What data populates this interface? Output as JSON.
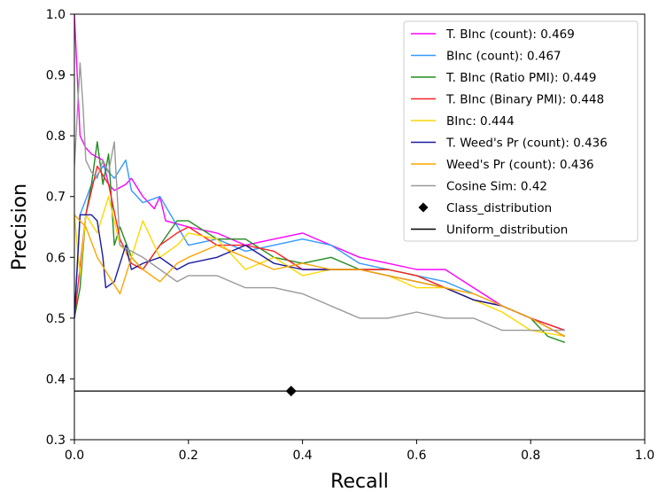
{
  "chart_data": {
    "type": "line",
    "title": "",
    "xlabel": "Recall",
    "ylabel": "Precision",
    "xlim": [
      0.0,
      1.0
    ],
    "ylim": [
      0.3,
      1.0
    ],
    "xticks": [
      "0.0",
      "0.2",
      "0.4",
      "0.6",
      "0.8",
      "1.0"
    ],
    "yticks": [
      "0.3",
      "0.4",
      "0.5",
      "0.6",
      "0.7",
      "0.8",
      "0.9",
      "1.0"
    ],
    "grid": false,
    "legend_position": "top-right",
    "series": [
      {
        "name": "T. BInc (count): 0.469",
        "color": "#ff00ff",
        "x": [
          0.0,
          0.005,
          0.01,
          0.02,
          0.03,
          0.05,
          0.06,
          0.07,
          0.09,
          0.1,
          0.12,
          0.14,
          0.15,
          0.16,
          0.2,
          0.25,
          0.3,
          0.35,
          0.4,
          0.45,
          0.5,
          0.55,
          0.6,
          0.65,
          0.7,
          0.75,
          0.8,
          0.86
        ],
        "y": [
          1.0,
          0.9,
          0.8,
          0.78,
          0.77,
          0.76,
          0.72,
          0.71,
          0.72,
          0.73,
          0.7,
          0.68,
          0.7,
          0.66,
          0.65,
          0.64,
          0.62,
          0.63,
          0.64,
          0.62,
          0.6,
          0.59,
          0.58,
          0.58,
          0.55,
          0.52,
          0.5,
          0.48
        ]
      },
      {
        "name": "BInc (count): 0.467",
        "color": "#3399ff",
        "x": [
          0.0,
          0.01,
          0.03,
          0.05,
          0.07,
          0.09,
          0.1,
          0.12,
          0.15,
          0.2,
          0.25,
          0.3,
          0.35,
          0.4,
          0.45,
          0.5,
          0.55,
          0.6,
          0.65,
          0.7,
          0.75,
          0.8,
          0.86
        ],
        "y": [
          0.5,
          0.67,
          0.72,
          0.75,
          0.73,
          0.76,
          0.71,
          0.69,
          0.7,
          0.62,
          0.63,
          0.61,
          0.62,
          0.63,
          0.62,
          0.59,
          0.58,
          0.57,
          0.56,
          0.54,
          0.52,
          0.5,
          0.48
        ]
      },
      {
        "name": "T. BInc (Ratio PMI): 0.449",
        "color": "#228b22",
        "x": [
          0.0,
          0.01,
          0.02,
          0.03,
          0.04,
          0.05,
          0.06,
          0.07,
          0.08,
          0.1,
          0.12,
          0.15,
          0.18,
          0.2,
          0.25,
          0.3,
          0.35,
          0.4,
          0.45,
          0.5,
          0.55,
          0.6,
          0.65,
          0.7,
          0.75,
          0.8,
          0.83,
          0.86
        ],
        "y": [
          0.5,
          0.55,
          0.67,
          0.72,
          0.79,
          0.72,
          0.77,
          0.62,
          0.65,
          0.6,
          0.58,
          0.62,
          0.66,
          0.66,
          0.63,
          0.63,
          0.6,
          0.59,
          0.6,
          0.58,
          0.58,
          0.57,
          0.55,
          0.53,
          0.52,
          0.5,
          0.47,
          0.46
        ]
      },
      {
        "name": "T. BInc (Binary PMI): 0.448",
        "color": "#ff2222",
        "x": [
          0.0,
          0.02,
          0.04,
          0.06,
          0.08,
          0.1,
          0.12,
          0.15,
          0.18,
          0.2,
          0.25,
          0.3,
          0.35,
          0.4,
          0.45,
          0.5,
          0.55,
          0.6,
          0.65,
          0.7,
          0.75,
          0.8,
          0.86
        ],
        "y": [
          0.5,
          0.67,
          0.75,
          0.72,
          0.63,
          0.59,
          0.58,
          0.62,
          0.64,
          0.65,
          0.62,
          0.62,
          0.61,
          0.58,
          0.58,
          0.58,
          0.58,
          0.57,
          0.55,
          0.53,
          0.52,
          0.5,
          0.48
        ]
      },
      {
        "name": "BInc: 0.444",
        "color": "#ffd700",
        "x": [
          0.0,
          0.01,
          0.02,
          0.04,
          0.06,
          0.08,
          0.1,
          0.12,
          0.15,
          0.18,
          0.2,
          0.25,
          0.3,
          0.35,
          0.4,
          0.45,
          0.5,
          0.55,
          0.6,
          0.65,
          0.7,
          0.75,
          0.8,
          0.86
        ],
        "y": [
          0.67,
          0.57,
          0.67,
          0.64,
          0.7,
          0.62,
          0.6,
          0.66,
          0.6,
          0.62,
          0.64,
          0.63,
          0.58,
          0.6,
          0.57,
          0.58,
          0.58,
          0.57,
          0.55,
          0.55,
          0.53,
          0.51,
          0.48,
          0.47
        ]
      },
      {
        "name": "T. Weed's Pr (count): 0.436",
        "color": "#1a1aa0",
        "x": [
          0.0,
          0.01,
          0.03,
          0.04,
          0.05,
          0.055,
          0.07,
          0.09,
          0.1,
          0.12,
          0.15,
          0.18,
          0.2,
          0.25,
          0.3,
          0.35,
          0.4,
          0.45,
          0.5,
          0.55,
          0.6,
          0.65,
          0.7,
          0.75,
          0.8,
          0.86
        ],
        "y": [
          0.5,
          0.67,
          0.67,
          0.66,
          0.6,
          0.55,
          0.56,
          0.62,
          0.58,
          0.59,
          0.6,
          0.58,
          0.59,
          0.6,
          0.62,
          0.59,
          0.58,
          0.58,
          0.58,
          0.57,
          0.56,
          0.55,
          0.53,
          0.52,
          0.5,
          0.47
        ]
      },
      {
        "name": "Weed's Pr (count): 0.436",
        "color": "#ffa500",
        "x": [
          0.0,
          0.02,
          0.04,
          0.06,
          0.08,
          0.1,
          0.12,
          0.15,
          0.18,
          0.2,
          0.25,
          0.3,
          0.35,
          0.4,
          0.45,
          0.5,
          0.55,
          0.6,
          0.65,
          0.7,
          0.75,
          0.8,
          0.86
        ],
        "y": [
          0.67,
          0.65,
          0.6,
          0.57,
          0.54,
          0.6,
          0.58,
          0.56,
          0.59,
          0.6,
          0.62,
          0.6,
          0.58,
          0.59,
          0.58,
          0.58,
          0.57,
          0.56,
          0.55,
          0.54,
          0.52,
          0.5,
          0.47
        ]
      },
      {
        "name": "Cosine Sim: 0.42",
        "color": "#999999",
        "x": [
          0.0,
          0.01,
          0.015,
          0.02,
          0.03,
          0.04,
          0.05,
          0.06,
          0.07,
          0.08,
          0.1,
          0.12,
          0.15,
          0.18,
          0.2,
          0.25,
          0.3,
          0.35,
          0.4,
          0.45,
          0.5,
          0.55,
          0.6,
          0.65,
          0.7,
          0.75,
          0.8,
          0.86
        ],
        "y": [
          0.75,
          0.92,
          0.85,
          0.76,
          0.74,
          0.73,
          0.76,
          0.74,
          0.79,
          0.62,
          0.61,
          0.6,
          0.58,
          0.56,
          0.57,
          0.57,
          0.55,
          0.55,
          0.54,
          0.52,
          0.5,
          0.5,
          0.51,
          0.5,
          0.5,
          0.48,
          0.48,
          0.48
        ]
      }
    ],
    "class_distribution": {
      "name": "Class_distribution",
      "x": 0.38,
      "y": 0.38,
      "color": "#000000"
    },
    "uniform_distribution": {
      "name": "Uniform_distribution",
      "y": 0.38,
      "color": "#000000"
    }
  }
}
